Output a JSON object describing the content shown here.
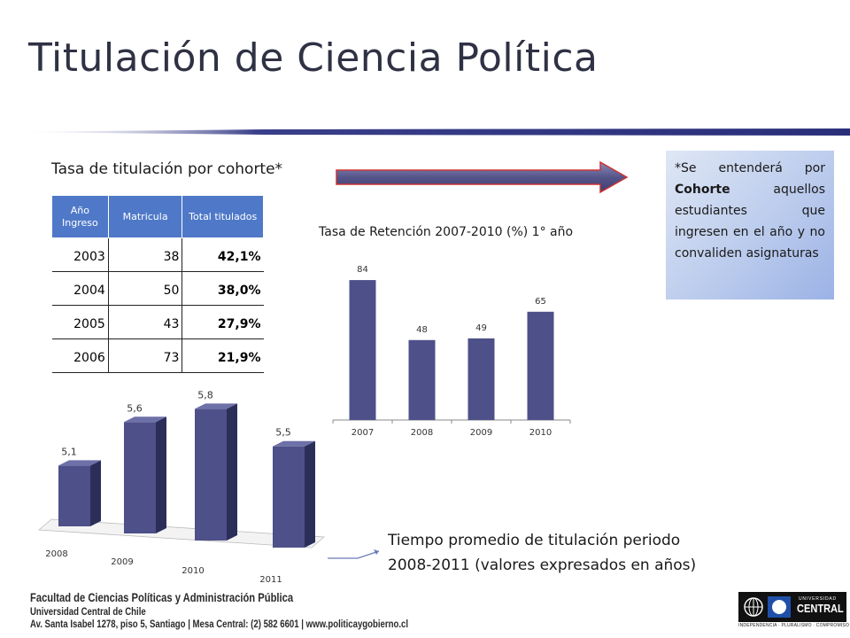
{
  "header": {
    "title": "Titulación de Ciencia Política"
  },
  "cohort": {
    "label": "Tasa de titulación por cohorte*",
    "columns": [
      "Año Ingreso",
      "Matricula",
      "Total titulados"
    ],
    "rows": [
      [
        "2003",
        "38",
        "42,1%"
      ],
      [
        "2004",
        "50",
        "38,0%"
      ],
      [
        "2005",
        "43",
        "27,9%"
      ],
      [
        "2006",
        "73",
        "21,9%"
      ]
    ]
  },
  "note": {
    "prefix": "*Se entenderá por ",
    "bold": "Cohorte",
    "suffix": " aquellos estudiantes que ingresen en el año y no convaliden asignaturas"
  },
  "retention": {
    "title": "Tasa de Retención 2007-2010 (%) 1° año"
  },
  "tiempo": {
    "line1": "Tiempo promedio de titulación periodo",
    "line2": "2008-2011 (valores expresados en años)"
  },
  "footer": {
    "line1": "Facultad de Ciencias Políticas y Administración Pública",
    "line2": "Universidad Central de Chile",
    "line3": "Av. Santa Isabel 1278, piso 5, Santiago | Mesa Central: (2) 582 6601 | www.politicaygobierno.cl"
  },
  "logo": {
    "top": "UNIVERSIDAD",
    "name": "CENTRAL",
    "tagline": "INDEPENDENCIA · PLURALISMO · COMPROMISO"
  },
  "colors": {
    "bar": "#4e5089",
    "title": "#2f3144",
    "table_header": "#4f79c8",
    "arrow": "#5a5a8a"
  },
  "chart_data": [
    {
      "type": "bar",
      "categories": [
        "2007",
        "2008",
        "2009",
        "2010"
      ],
      "values": [
        84,
        48,
        49,
        65
      ],
      "data_labels": [
        "84",
        "48",
        "49",
        "65"
      ],
      "ylim": [
        0,
        100
      ]
    },
    {
      "type": "bar",
      "categories": [
        "2008",
        "2009",
        "2010",
        "2011"
      ],
      "values": [
        5.1,
        5.6,
        5.8,
        5.5
      ],
      "data_labels": [
        "5,1",
        "5,6",
        "5,8",
        "5,5"
      ],
      "ylim": [
        4.5,
        5.9
      ]
    }
  ]
}
